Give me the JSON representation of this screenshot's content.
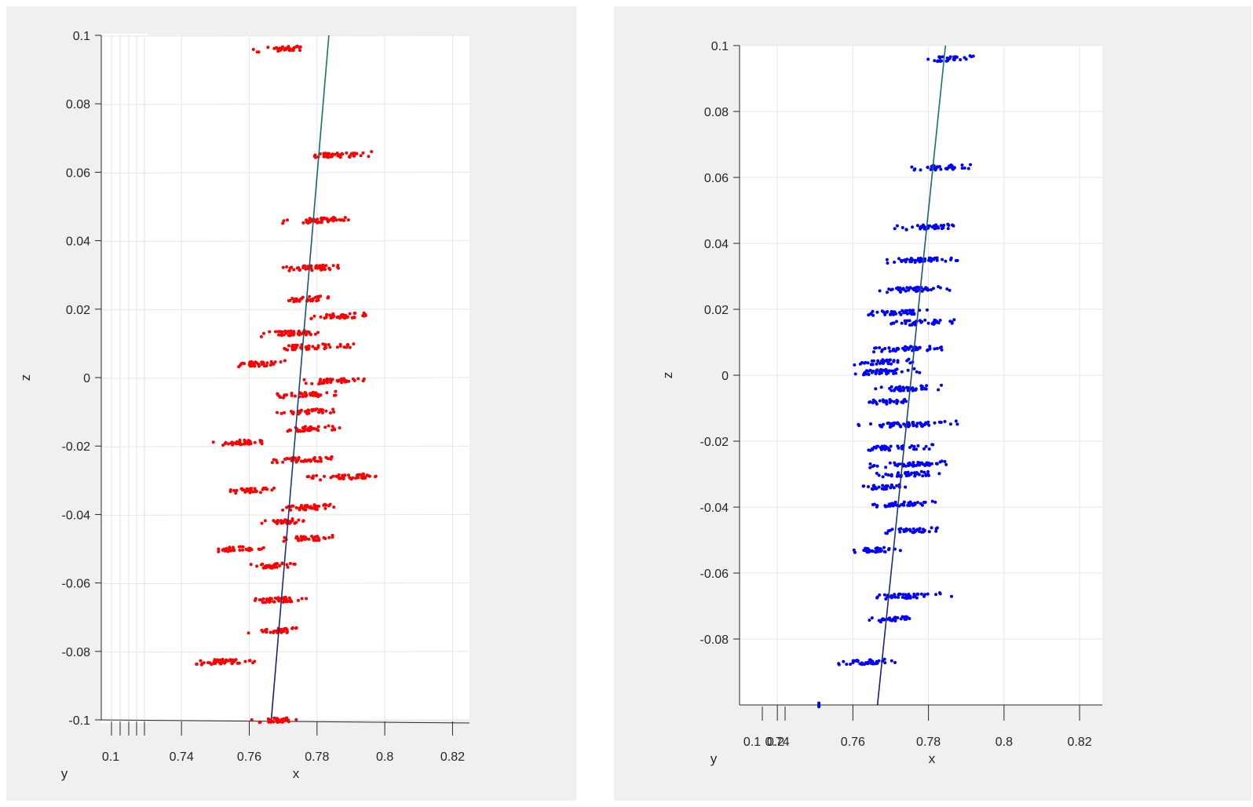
{
  "chart_data": [
    {
      "type": "scatter",
      "name_hint": "left-plot",
      "xlabel": "x",
      "ylabel": "z",
      "depth_label": "y",
      "xlim": [
        0.73,
        0.825
      ],
      "zlim": [
        -0.1,
        0.1
      ],
      "x_ticks": [
        "0.74",
        "0.76",
        "0.78",
        "0.8",
        "0.82"
      ],
      "y_ticks": [
        "0.1"
      ],
      "z_ticks": [
        "0.1",
        "0.08",
        "0.06",
        "0.04",
        "0.02",
        "0",
        "-0.02",
        "-0.04",
        "-0.06",
        "-0.08",
        "-0.1"
      ],
      "grid": true,
      "point_color": "#ff0000",
      "line": {
        "x": [
          0.7665,
          0.7835
        ],
        "z": [
          -0.1,
          0.1
        ],
        "color_top": "#1a7a6a",
        "color_bottom": "#1a1a7a"
      },
      "clusters": [
        {
          "z": 0.096,
          "x_min": 0.761,
          "x_max": 0.777,
          "center": 0.7705
        },
        {
          "z": 0.065,
          "x_min": 0.777,
          "x_max": 0.797,
          "center": 0.787
        },
        {
          "z": 0.046,
          "x_min": 0.769,
          "x_max": 0.791,
          "center": 0.782
        },
        {
          "z": 0.032,
          "x_min": 0.769,
          "x_max": 0.788,
          "center": 0.778
        },
        {
          "z": 0.023,
          "x_min": 0.77,
          "x_max": 0.785,
          "center": 0.777
        },
        {
          "z": 0.018,
          "x_min": 0.777,
          "x_max": 0.795,
          "center": 0.787
        },
        {
          "z": 0.013,
          "x_min": 0.763,
          "x_max": 0.784,
          "center": 0.773
        },
        {
          "z": 0.009,
          "x_min": 0.77,
          "x_max": 0.792,
          "center": 0.778
        },
        {
          "z": 0.004,
          "x_min": 0.756,
          "x_max": 0.771,
          "center": 0.763
        },
        {
          "z": -0.001,
          "x_min": 0.776,
          "x_max": 0.794,
          "center": 0.785
        },
        {
          "z": -0.005,
          "x_min": 0.768,
          "x_max": 0.786,
          "center": 0.777
        },
        {
          "z": -0.01,
          "x_min": 0.768,
          "x_max": 0.787,
          "center": 0.777
        },
        {
          "z": -0.015,
          "x_min": 0.77,
          "x_max": 0.787,
          "center": 0.777
        },
        {
          "z": -0.019,
          "x_min": 0.749,
          "x_max": 0.764,
          "center": 0.756
        },
        {
          "z": -0.024,
          "x_min": 0.766,
          "x_max": 0.785,
          "center": 0.775
        },
        {
          "z": -0.029,
          "x_min": 0.777,
          "x_max": 0.798,
          "center": 0.789
        },
        {
          "z": -0.033,
          "x_min": 0.754,
          "x_max": 0.768,
          "center": 0.761
        },
        {
          "z": -0.038,
          "x_min": 0.769,
          "x_max": 0.786,
          "center": 0.776
        },
        {
          "z": -0.042,
          "x_min": 0.762,
          "x_max": 0.778,
          "center": 0.77
        },
        {
          "z": -0.047,
          "x_min": 0.77,
          "x_max": 0.786,
          "center": 0.777
        },
        {
          "z": -0.05,
          "x_min": 0.75,
          "x_max": 0.765,
          "center": 0.757
        },
        {
          "z": -0.055,
          "x_min": 0.76,
          "x_max": 0.774,
          "center": 0.767
        },
        {
          "z": -0.065,
          "x_min": 0.76,
          "x_max": 0.778,
          "center": 0.768
        },
        {
          "z": -0.074,
          "x_min": 0.759,
          "x_max": 0.774,
          "center": 0.767
        },
        {
          "z": -0.083,
          "x_min": 0.743,
          "x_max": 0.762,
          "center": 0.752
        },
        {
          "z": -0.1,
          "x_min": 0.76,
          "x_max": 0.775,
          "center": 0.769
        }
      ]
    },
    {
      "type": "scatter",
      "name_hint": "right-plot",
      "xlabel": "x",
      "ylabel": "z",
      "depth_label": "y",
      "xlim": [
        0.73,
        0.826
      ],
      "zlim": [
        -0.1,
        0.1
      ],
      "x_ticks": [
        "0.74",
        "0.76",
        "0.78",
        "0.8",
        "0.82"
      ],
      "y_ticks": [
        "0.1",
        "0.2"
      ],
      "z_ticks": [
        "0.1",
        "0.08",
        "0.06",
        "0.04",
        "0.02",
        "0",
        "-0.02",
        "-0.04",
        "-0.06",
        "-0.08"
      ],
      "grid": true,
      "point_color": "#0000ff",
      "line": {
        "x": [
          0.7665,
          0.7845
        ],
        "z": [
          -0.1,
          0.1
        ],
        "color_top": "#1a7a6a",
        "color_bottom": "#1a1a7a"
      },
      "clusters": [
        {
          "z": 0.096,
          "x_min": 0.779,
          "x_max": 0.792,
          "center": 0.786
        },
        {
          "z": 0.063,
          "x_min": 0.775,
          "x_max": 0.792,
          "center": 0.784
        },
        {
          "z": 0.045,
          "x_min": 0.771,
          "x_max": 0.787,
          "center": 0.78
        },
        {
          "z": 0.035,
          "x_min": 0.767,
          "x_max": 0.788,
          "center": 0.778
        },
        {
          "z": 0.026,
          "x_min": 0.767,
          "x_max": 0.786,
          "center": 0.776
        },
        {
          "z": 0.019,
          "x_min": 0.764,
          "x_max": 0.781,
          "center": 0.772
        },
        {
          "z": 0.016,
          "x_min": 0.77,
          "x_max": 0.787,
          "center": 0.778
        },
        {
          "z": 0.008,
          "x_min": 0.765,
          "x_max": 0.787,
          "center": 0.775
        },
        {
          "z": 0.004,
          "x_min": 0.76,
          "x_max": 0.776,
          "center": 0.767
        },
        {
          "z": 0.001,
          "x_min": 0.76,
          "x_max": 0.778,
          "center": 0.767
        },
        {
          "z": -0.004,
          "x_min": 0.766,
          "x_max": 0.784,
          "center": 0.775
        },
        {
          "z": -0.008,
          "x_min": 0.764,
          "x_max": 0.777,
          "center": 0.771
        },
        {
          "z": -0.015,
          "x_min": 0.761,
          "x_max": 0.788,
          "center": 0.774
        },
        {
          "z": -0.022,
          "x_min": 0.764,
          "x_max": 0.782,
          "center": 0.772
        },
        {
          "z": -0.027,
          "x_min": 0.764,
          "x_max": 0.785,
          "center": 0.775
        },
        {
          "z": -0.03,
          "x_min": 0.766,
          "x_max": 0.783,
          "center": 0.776
        },
        {
          "z": -0.034,
          "x_min": 0.762,
          "x_max": 0.774,
          "center": 0.767
        },
        {
          "z": -0.039,
          "x_min": 0.764,
          "x_max": 0.782,
          "center": 0.774
        },
        {
          "z": -0.047,
          "x_min": 0.768,
          "x_max": 0.783,
          "center": 0.776
        },
        {
          "z": -0.053,
          "x_min": 0.76,
          "x_max": 0.774,
          "center": 0.766
        },
        {
          "z": -0.067,
          "x_min": 0.766,
          "x_max": 0.787,
          "center": 0.774
        },
        {
          "z": -0.074,
          "x_min": 0.764,
          "x_max": 0.777,
          "center": 0.771
        },
        {
          "z": -0.087,
          "x_min": 0.755,
          "x_max": 0.772,
          "center": 0.763
        },
        {
          "z": -0.1,
          "x_min": 0.751,
          "x_max": 0.751,
          "center": 0.751
        }
      ]
    }
  ]
}
